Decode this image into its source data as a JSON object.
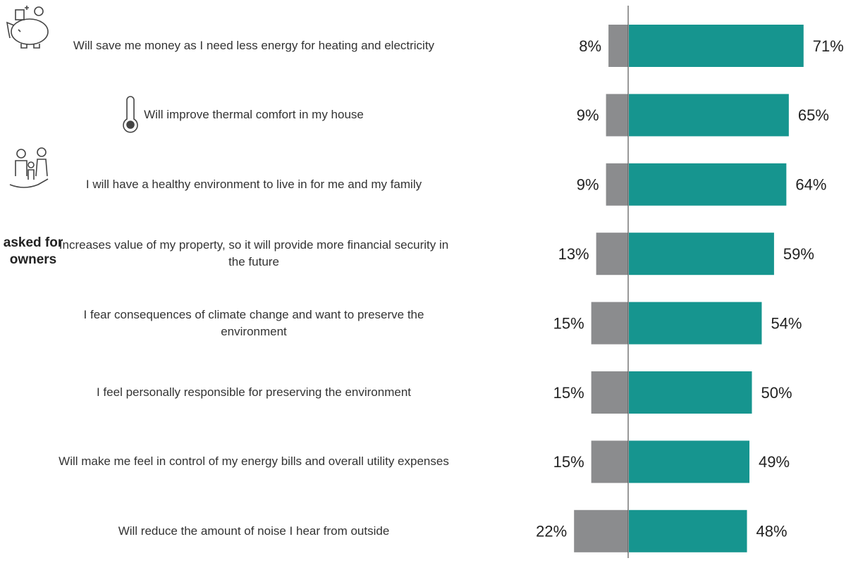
{
  "chart_data": {
    "type": "diverging-bar",
    "categories": [
      "Will save me money as I need less energy for heating and electricity",
      "Will improve thermal comfort in my house",
      "I will have a healthy environment to live in for me and my family",
      "Increases value of my property, so it will provide more financial security in the future",
      "I fear consequences of climate change and want to preserve the environment",
      "I feel personally responsible for preserving the environment",
      "Will make me feel in control of my energy bills and overall utility expenses",
      "Will reduce the amount of noise I hear from outside"
    ],
    "annotation": [
      "asked for",
      "owners"
    ],
    "series": [
      {
        "color": "#8b8c8e",
        "values": [
          8,
          9,
          9,
          13,
          15,
          15,
          15,
          22
        ],
        "value_labels": [
          "8%",
          "9%",
          "9%",
          "13%",
          "15%",
          "15%",
          "15%",
          "22%"
        ]
      },
      {
        "color": "#16958f",
        "values": [
          71,
          65,
          64,
          59,
          54,
          50,
          49,
          48
        ],
        "value_labels": [
          "71%",
          "65%",
          "64%",
          "59%",
          "54%",
          "50%",
          "49%",
          "48%"
        ]
      }
    ]
  }
}
